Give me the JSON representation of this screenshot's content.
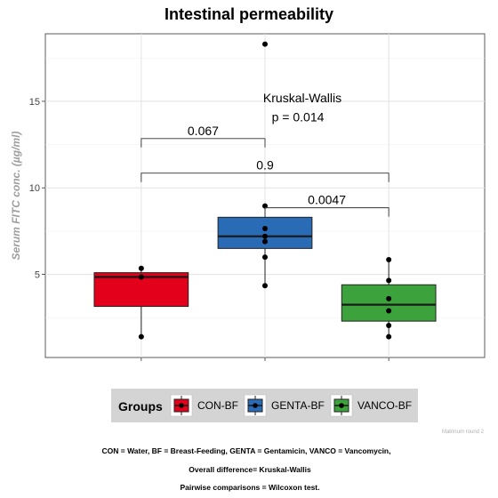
{
  "chart_data": {
    "type": "boxplot",
    "title": "Intestinal permeability",
    "xlabel": "",
    "ylabel": "Serum FITC conc. (µg/ml)",
    "ylim": [
      0.2,
      18.9
    ],
    "yticks": [
      5,
      10,
      15
    ],
    "grid": true,
    "legend_position": "bottom",
    "legend_title": "Groups",
    "groups": [
      {
        "name": "CON-BF",
        "color": "#e2001a",
        "q1": 3.15,
        "median": 4.85,
        "q3": 5.1,
        "whisker_low": 1.4,
        "whisker_high": 5.35,
        "points": [
          1.4,
          4.85,
          5.35
        ]
      },
      {
        "name": "GENTA-BF",
        "color": "#2a6bb6",
        "q1": 6.5,
        "median": 7.2,
        "q3": 8.3,
        "whisker_low": 4.35,
        "whisker_high": 8.95,
        "points": [
          4.35,
          6.0,
          6.9,
          7.2,
          7.65,
          8.95,
          18.3
        ]
      },
      {
        "name": "VANCO-BF",
        "color": "#3ca23c",
        "q1": 2.3,
        "median": 3.25,
        "q3": 4.4,
        "whisker_low": 1.4,
        "whisker_high": 5.85,
        "points": [
          1.4,
          2.05,
          2.9,
          3.6,
          4.65,
          5.85
        ]
      }
    ],
    "comparisons": [
      {
        "from": 0,
        "to": 1,
        "y": 12.85,
        "label": "0.067"
      },
      {
        "from": 0,
        "to": 2,
        "y": 10.85,
        "label": "0.9"
      },
      {
        "from": 1,
        "to": 2,
        "y": 8.85,
        "label": "0.0047"
      }
    ],
    "test_annotation": {
      "line1": "Kruskal-Wallis",
      "line2": "p = 0.014",
      "x_group": 1,
      "y1": 15.2,
      "y2": 14.1
    },
    "watermark": "Matrinum round 2",
    "captions": [
      "CON = Water, BF = Breast-Feeding, GENTA = Gentamicin,  VANCO = Vancomycin,",
      "Overall difference= Kruskal-Wallis",
      "Pairwise comparisons = Wilcoxon test."
    ]
  }
}
